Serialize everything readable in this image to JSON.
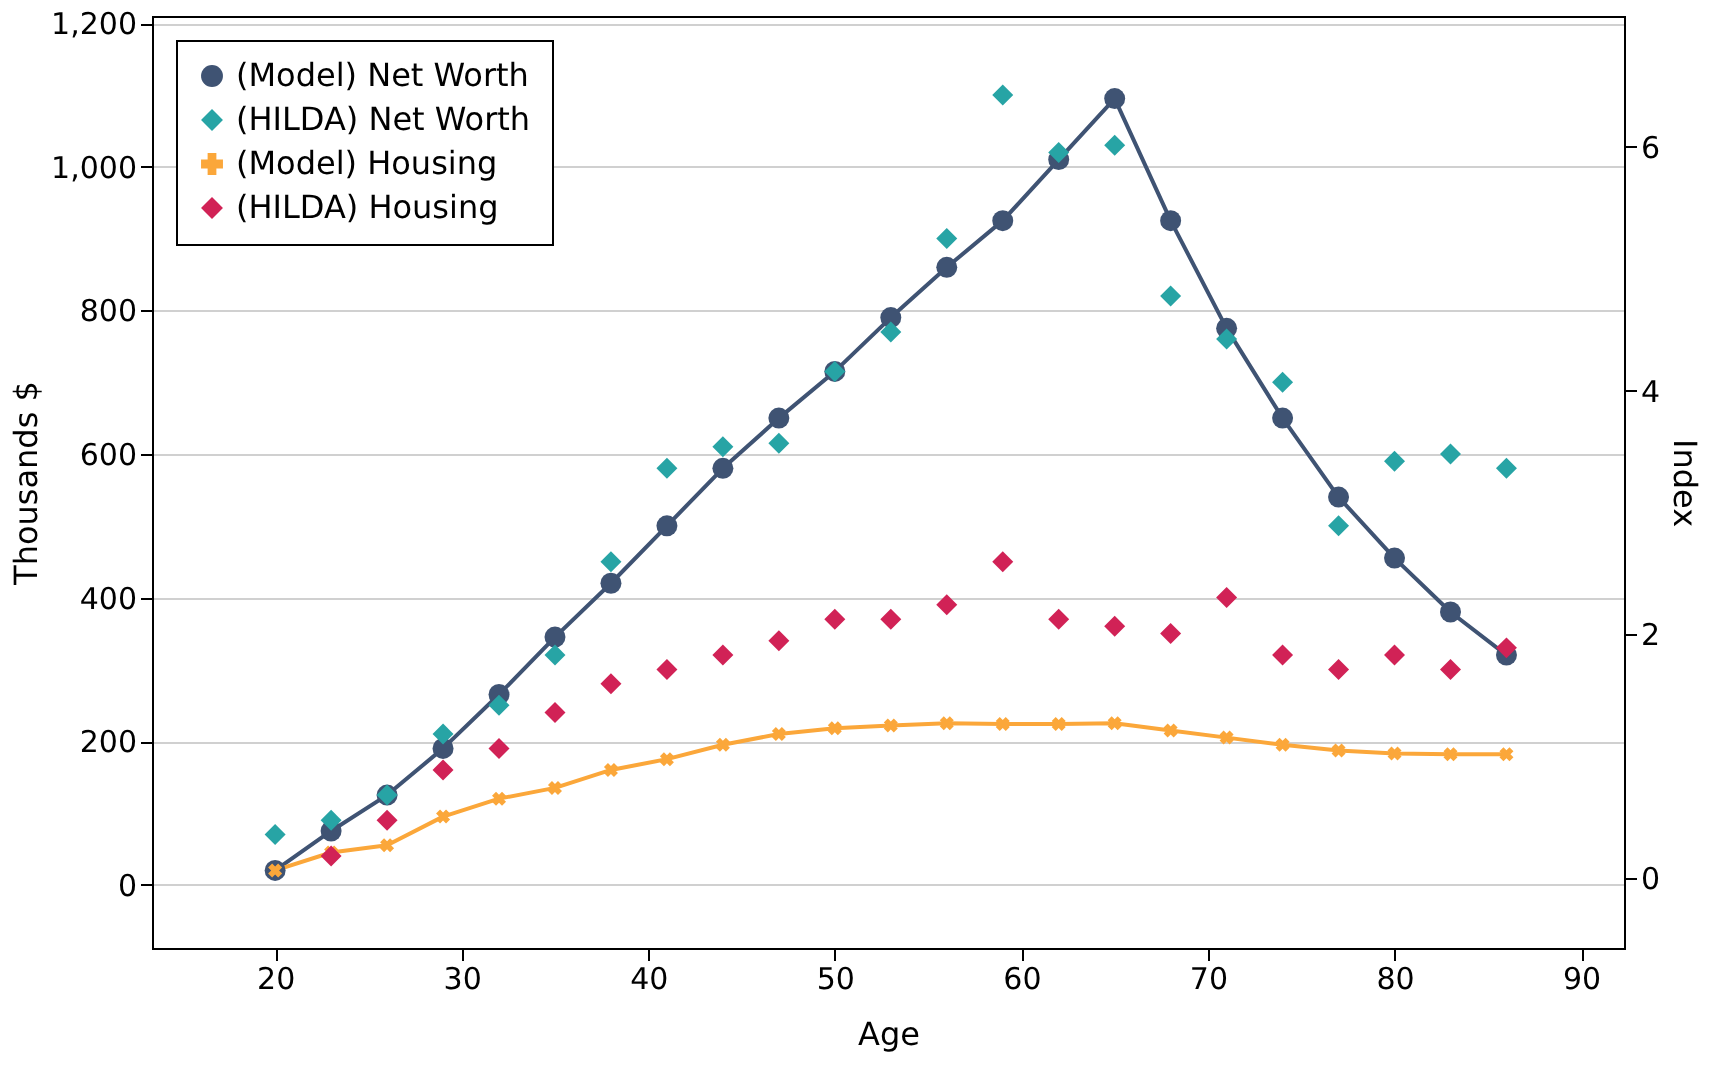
{
  "chart_data": {
    "type": "line",
    "xlabel": "Age",
    "ylabel": "Thousands $",
    "y2label": "Index",
    "x": [
      20,
      23,
      26,
      29,
      32,
      35,
      38,
      41,
      44,
      47,
      50,
      53,
      56,
      59,
      62,
      65,
      68,
      71,
      74,
      77,
      80,
      83,
      86
    ],
    "series": [
      {
        "name": "(Model) Net Worth",
        "type": "line",
        "marker": "circle",
        "color": "#3f5373",
        "values": [
          20,
          75,
          125,
          190,
          265,
          345,
          420,
          500,
          580,
          650,
          715,
          790,
          860,
          925,
          1010,
          1095,
          925,
          775,
          650,
          540,
          455,
          380,
          320
        ]
      },
      {
        "name": "(HILDA) Net Worth",
        "type": "scatter",
        "marker": "diamond",
        "color": "#27a4a5",
        "values": [
          70,
          90,
          125,
          210,
          250,
          320,
          450,
          580,
          610,
          615,
          715,
          770,
          900,
          1100,
          1020,
          1030,
          820,
          760,
          700,
          500,
          590,
          600,
          580
        ]
      },
      {
        "name": "(Model) Housing",
        "type": "line",
        "marker": "cross",
        "color": "#fba73a",
        "values": [
          20,
          45,
          55,
          95,
          120,
          135,
          160,
          175,
          195,
          210,
          218,
          222,
          225,
          224,
          224,
          225,
          215,
          205,
          195,
          187,
          183,
          182,
          182
        ]
      },
      {
        "name": "(HILDA) Housing",
        "type": "scatter",
        "marker": "diamond",
        "color": "#d12256",
        "values": [
          null,
          40,
          90,
          160,
          190,
          240,
          280,
          300,
          320,
          340,
          370,
          370,
          390,
          450,
          370,
          360,
          350,
          400,
          320,
          300,
          320,
          300,
          330
        ]
      }
    ],
    "xlim": [
      13.4,
      92.3
    ],
    "xticks": [
      20,
      30,
      40,
      50,
      60,
      70,
      80,
      90
    ],
    "ylim": [
      -88,
      1210
    ],
    "yticks": [
      {
        "value": 0,
        "label": "0"
      },
      {
        "value": 200,
        "label": "200"
      },
      {
        "value": 400,
        "label": "400"
      },
      {
        "value": 600,
        "label": "600"
      },
      {
        "value": 800,
        "label": "800"
      },
      {
        "value": 1000,
        "label": "1,000"
      },
      {
        "value": 1200,
        "label": "1,200"
      }
    ],
    "y2lim": [
      -0.57,
      7.07
    ],
    "y2ticks": [
      0,
      2,
      4,
      6
    ],
    "grid": "y",
    "legend": "top left"
  }
}
